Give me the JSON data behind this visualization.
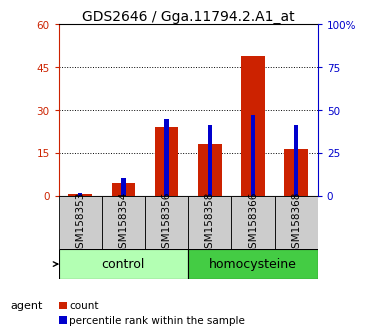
{
  "title": "GDS2646 / Gga.11794.2.A1_at",
  "samples": [
    "GSM158353",
    "GSM158354",
    "GSM158356",
    "GSM158358",
    "GSM158366",
    "GSM158368"
  ],
  "count_values": [
    0.5,
    4.5,
    24,
    18,
    49,
    16.5
  ],
  "percentile_values_pct": [
    1.5,
    10.5,
    45,
    41,
    47,
    41
  ],
  "groups": [
    {
      "label": "control",
      "indices": [
        0,
        1,
        2
      ],
      "color": "#b3ffb3"
    },
    {
      "label": "homocysteine",
      "indices": [
        3,
        4,
        5
      ],
      "color": "#44cc44"
    }
  ],
  "left_ylim": [
    0,
    60
  ],
  "right_ylim": [
    0,
    100
  ],
  "left_yticks": [
    0,
    15,
    30,
    45,
    60
  ],
  "left_yticklabels": [
    "0",
    "15",
    "30",
    "45",
    "60"
  ],
  "right_yticks": [
    0,
    25,
    50,
    75,
    100
  ],
  "right_yticklabels": [
    "0",
    "25",
    "50",
    "75",
    "100%"
  ],
  "bar_width": 0.55,
  "count_color": "#cc2200",
  "percentile_color": "#0000cc",
  "agent_label": "agent",
  "legend_count": "count",
  "legend_percentile": "percentile rank within the sample",
  "title_fontsize": 10,
  "tick_fontsize": 7.5,
  "group_label_fontsize": 9,
  "sample_bg_color": "#cccccc",
  "white": "#ffffff"
}
